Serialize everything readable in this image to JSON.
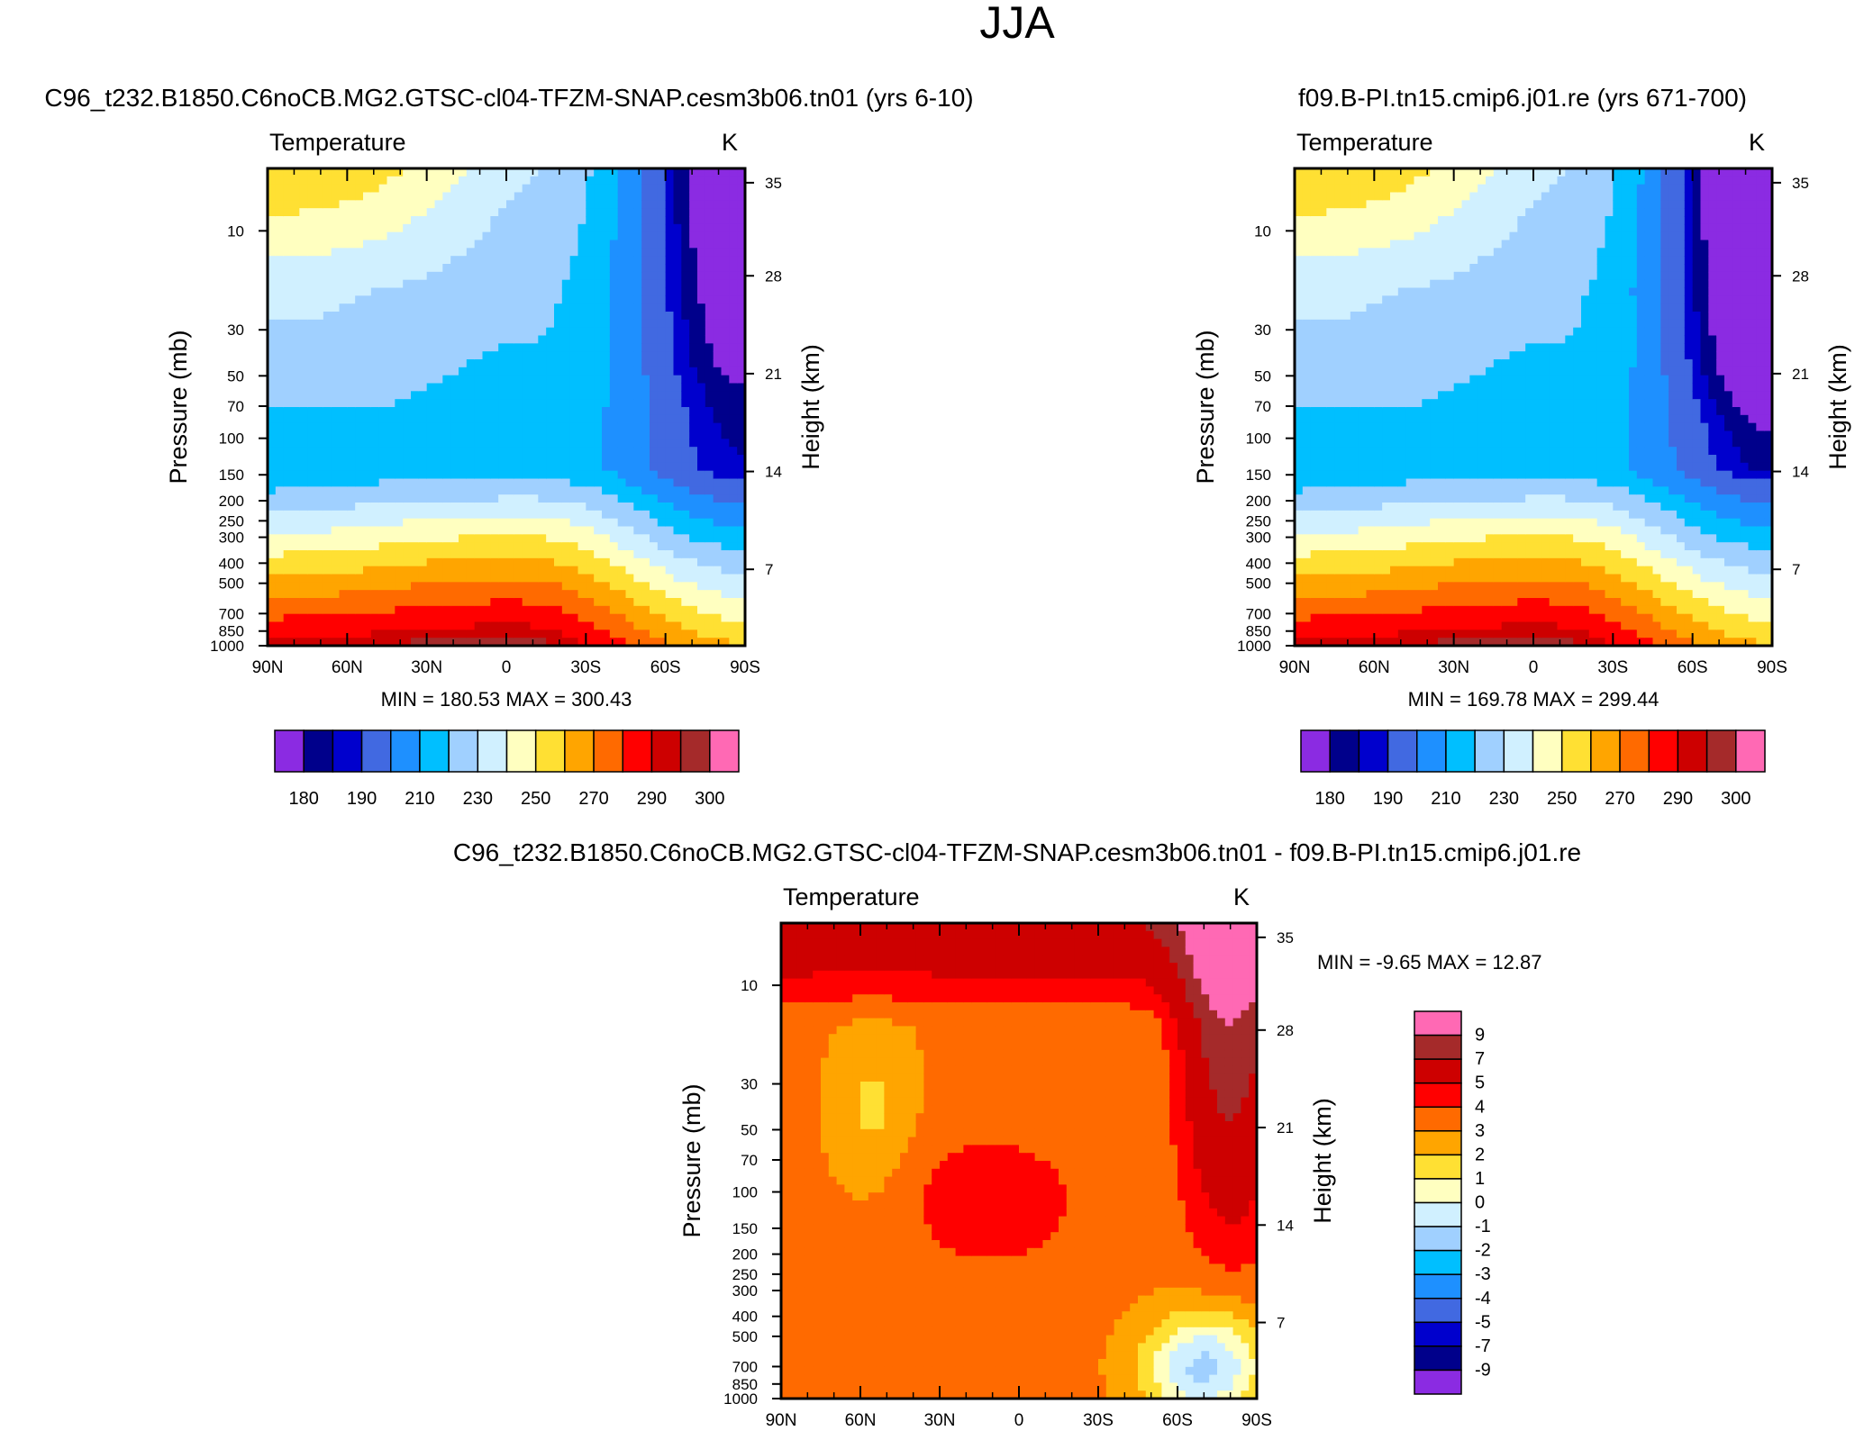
{
  "figure": {
    "title": "JJA"
  },
  "chart_data": [
    {
      "type": "heatmap",
      "panel": "top-left",
      "title": "C96_t232.B1850.C6noCB.MG2.GTSC-cl04-TFZM-SNAP.cesm3b06.tn01 (yrs 6-10)",
      "variable": "Temperature",
      "units": "K",
      "xlabel": "",
      "ylabel": "Pressure (mb)",
      "ylabel_right": "Height (km)",
      "x_ticks": [
        "90N",
        "60N",
        "30N",
        "0",
        "30S",
        "60S",
        "90S"
      ],
      "y_ticks": [
        "10",
        "30",
        "50",
        "70",
        "100",
        "150",
        "200",
        "250",
        "300",
        "400",
        "500",
        "700",
        "850",
        "1000"
      ],
      "height_ticks": [
        "35",
        "28",
        "21",
        "14",
        "7"
      ],
      "ylim": [
        1000,
        5
      ],
      "stats": "MIN = 180.53  MAX = 300.43",
      "colorbar_labels": [
        "180",
        "190",
        "210",
        "230",
        "250",
        "270",
        "290",
        "300"
      ],
      "levels": [
        180,
        185,
        190,
        200,
        210,
        220,
        230,
        240,
        250,
        260,
        270,
        280,
        290,
        295,
        300
      ],
      "colors": [
        "#8b2be2",
        "#00008b",
        "#0000cd",
        "#4169e1",
        "#1e90ff",
        "#00bfff",
        "#a0d0ff",
        "#d0f0ff",
        "#ffffc0",
        "#ffe033",
        "#ffa500",
        "#ff6a00",
        "#ff0000",
        "#cd0000",
        "#a52a2a",
        "#ff69b4"
      ],
      "min": 180.53,
      "max": 300.43,
      "variant": 0
    },
    {
      "type": "heatmap",
      "panel": "top-right",
      "title": "f09.B-PI.tn15.cmip6.j01.re (yrs 671-700)",
      "variable": "Temperature",
      "units": "K",
      "xlabel": "",
      "ylabel": "Pressure (mb)",
      "ylabel_right": "Height (km)",
      "x_ticks": [
        "90N",
        "60N",
        "30N",
        "0",
        "30S",
        "60S",
        "90S"
      ],
      "y_ticks": [
        "10",
        "30",
        "50",
        "70",
        "100",
        "150",
        "200",
        "250",
        "300",
        "400",
        "500",
        "700",
        "850",
        "1000"
      ],
      "height_ticks": [
        "35",
        "28",
        "21",
        "14",
        "7"
      ],
      "ylim": [
        1000,
        5
      ],
      "stats": "MIN = 169.78  MAX = 299.44",
      "colorbar_labels": [
        "180",
        "190",
        "210",
        "230",
        "250",
        "270",
        "290",
        "300"
      ],
      "levels": [
        180,
        185,
        190,
        200,
        210,
        220,
        230,
        240,
        250,
        260,
        270,
        280,
        290,
        295,
        300
      ],
      "colors": [
        "#8b2be2",
        "#00008b",
        "#0000cd",
        "#4169e1",
        "#1e90ff",
        "#00bfff",
        "#a0d0ff",
        "#d0f0ff",
        "#ffffc0",
        "#ffe033",
        "#ffa500",
        "#ff6a00",
        "#ff0000",
        "#cd0000",
        "#a52a2a",
        "#ff69b4"
      ],
      "min": 169.78,
      "max": 299.44,
      "variant": 1
    },
    {
      "type": "heatmap",
      "panel": "bottom",
      "title": "C96_t232.B1850.C6noCB.MG2.GTSC-cl04-TFZM-SNAP.cesm3b06.tn01 - f09.B-PI.tn15.cmip6.j01.re",
      "variable": "Temperature",
      "units": "K",
      "xlabel": "",
      "ylabel": "Pressure (mb)",
      "ylabel_right": "Height (km)",
      "x_ticks": [
        "90N",
        "60N",
        "30N",
        "0",
        "30S",
        "60S",
        "90S"
      ],
      "y_ticks": [
        "10",
        "30",
        "50",
        "70",
        "100",
        "150",
        "200",
        "250",
        "300",
        "400",
        "500",
        "700",
        "850",
        "1000"
      ],
      "height_ticks": [
        "35",
        "28",
        "21",
        "14",
        "7"
      ],
      "ylim": [
        1000,
        5
      ],
      "stats": "MIN =  -9.65  MAX =  12.87",
      "colorbar_labels": [
        "9",
        "7",
        "5",
        "4",
        "3",
        "2",
        "1",
        "0",
        "-1",
        "-2",
        "-3",
        "-4",
        "-5",
        "-7",
        "-9"
      ],
      "levels": [
        -9,
        -7,
        -5,
        -4,
        -3,
        -2,
        -1,
        0,
        1,
        2,
        3,
        4,
        5,
        7,
        9
      ],
      "colors": [
        "#8b2be2",
        "#00008b",
        "#0000cd",
        "#4169e1",
        "#1e90ff",
        "#00bfff",
        "#a0d0ff",
        "#d0f0ff",
        "#ffffc0",
        "#ffe033",
        "#ffa500",
        "#ff6a00",
        "#ff0000",
        "#cd0000",
        "#a52a2a",
        "#ff69b4"
      ],
      "min": -9.65,
      "max": 12.87,
      "variant": 2
    }
  ]
}
